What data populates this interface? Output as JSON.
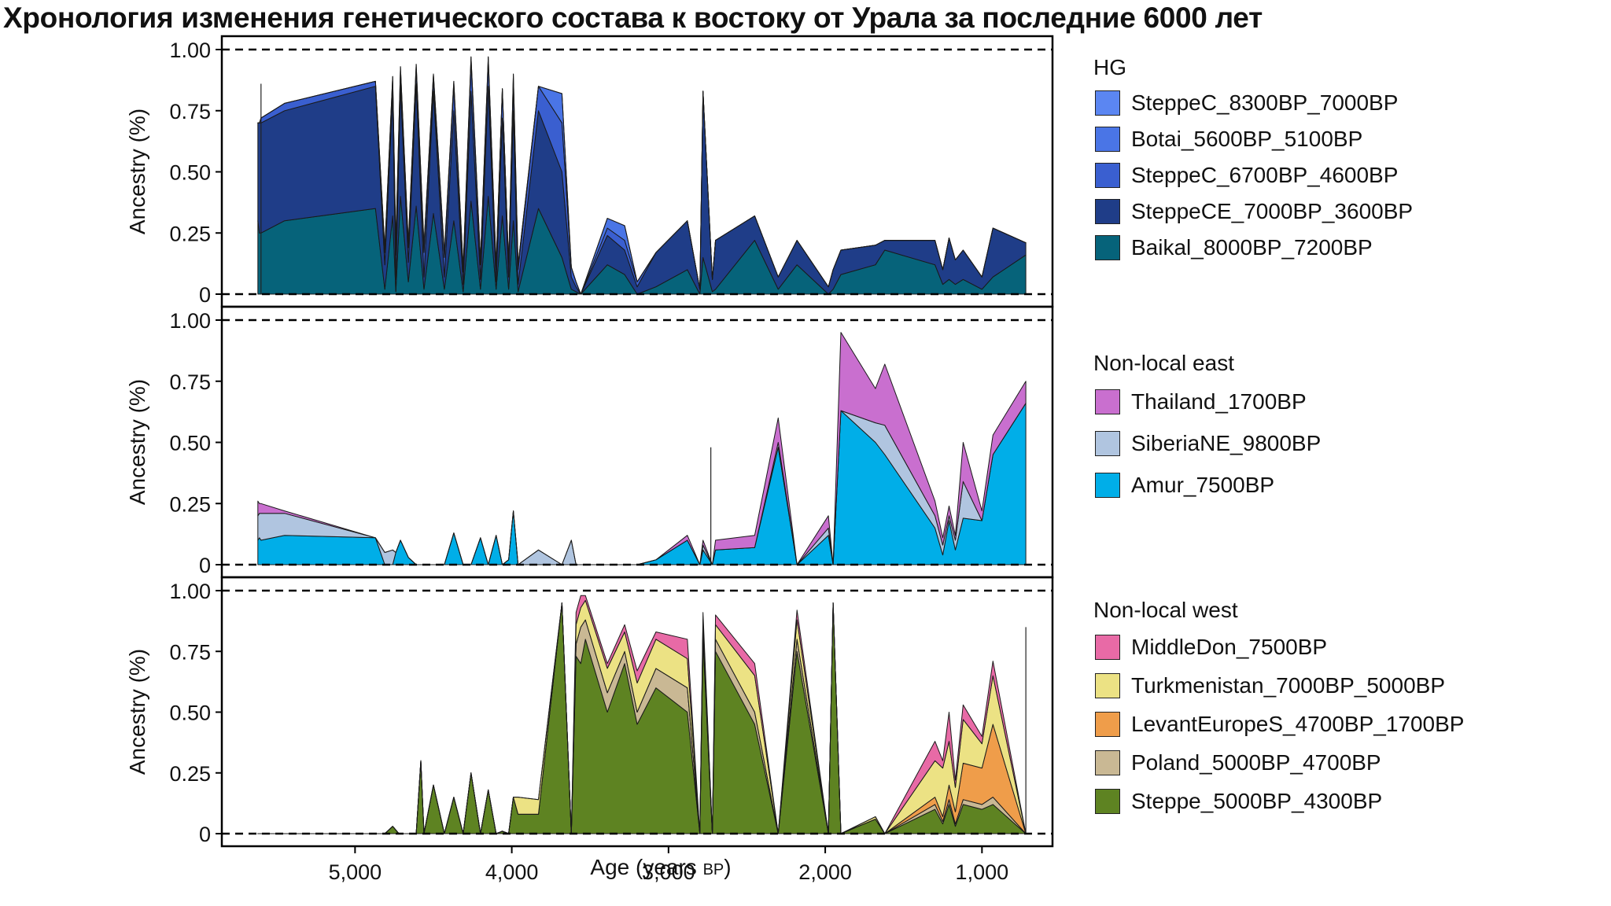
{
  "title": "Хронология изменения генетического состава к востоку от Урала за последние 6000 лет",
  "chart_data": {
    "type": "area",
    "stacked": true,
    "xlabel": "Age (years BP)",
    "xlabel_main": "Age (years ",
    "xlabel_unit": "BP",
    "xlabel_end": ")",
    "x_reversed": true,
    "xlim": [
      5850,
      550
    ],
    "xticks": [
      5000,
      4000,
      3000,
      2000,
      1000
    ],
    "xtick_labels": [
      "5,000",
      "4,000",
      "3,000",
      "2,000",
      "1,000"
    ],
    "ylim": [
      0,
      1
    ],
    "yticks": [
      0,
      0.25,
      0.5,
      0.75,
      1.0
    ],
    "ytick_labels": [
      "0",
      "0.25",
      "0.50",
      "0.75",
      "1.00"
    ],
    "ylabel": "Ancestry (%)",
    "reference_lines": [
      0,
      1
    ],
    "panels": [
      {
        "legend_title": "HG",
        "x": [
          5620,
          5610,
          5600,
          5450,
          4870,
          4810,
          4760,
          4740,
          4710,
          4660,
          4610,
          4560,
          4500,
          4430,
          4370,
          4310,
          4260,
          4200,
          4150,
          4100,
          4060,
          4020,
          3990,
          3960,
          3830,
          3680,
          3620,
          3590,
          3560,
          3390,
          3280,
          3200,
          3080,
          2880,
          2800,
          2780,
          2720,
          2700,
          2450,
          2300,
          2180,
          1980,
          1950,
          1900,
          1680,
          1620,
          1300,
          1250,
          1210,
          1170,
          1120,
          1000,
          930,
          720
        ],
        "series": [
          {
            "name": "Baikal_8000BP_7200BP",
            "color": "#06637a",
            "values": [
              0.3,
              0.25,
              0.25,
              0.3,
              0.35,
              0.02,
              0.32,
              0.01,
              0.4,
              0.05,
              0.36,
              0.02,
              0.33,
              0.02,
              0.3,
              0.01,
              0.38,
              0.02,
              0.4,
              0.02,
              0.32,
              0.02,
              0.3,
              0.01,
              0.35,
              0.15,
              0.02,
              0.01,
              0.0,
              0.12,
              0.08,
              0.0,
              0.03,
              0.1,
              0.0,
              0.15,
              0.01,
              0.02,
              0.22,
              0.02,
              0.12,
              0.0,
              0.02,
              0.08,
              0.12,
              0.18,
              0.12,
              0.04,
              0.06,
              0.04,
              0.06,
              0.02,
              0.07,
              0.16
            ]
          },
          {
            "name": "SteppeCE_7000BP_3600BP",
            "color": "#1f3d88",
            "values": [
              0.4,
              0.45,
              0.45,
              0.45,
              0.5,
              0.1,
              0.5,
              0.05,
              0.45,
              0.08,
              0.5,
              0.05,
              0.5,
              0.05,
              0.45,
              0.03,
              0.45,
              0.04,
              0.45,
              0.03,
              0.4,
              0.05,
              0.45,
              0.03,
              0.4,
              0.35,
              0.05,
              0.02,
              0.0,
              0.12,
              0.1,
              0.03,
              0.14,
              0.2,
              0.02,
              0.68,
              0.05,
              0.2,
              0.1,
              0.05,
              0.1,
              0.03,
              0.08,
              0.1,
              0.08,
              0.04,
              0.1,
              0.06,
              0.17,
              0.1,
              0.12,
              0.05,
              0.2,
              0.05
            ]
          },
          {
            "name": "SteppeC_6700BP_4600BP",
            "color": "#3a5fd0",
            "values": [
              0.0,
              0.0,
              0.02,
              0.03,
              0.02,
              0.05,
              0.05,
              0.1,
              0.04,
              0.06,
              0.06,
              0.1,
              0.05,
              0.08,
              0.1,
              0.05,
              0.12,
              0.06,
              0.1,
              0.05,
              0.12,
              0.05,
              0.1,
              0.06,
              0.1,
              0.2,
              0.04,
              0.02,
              0.0,
              0.03,
              0.04,
              0.02,
              0.0,
              0.0,
              0.0,
              0.0,
              0.0,
              0.0,
              0.0,
              0.0,
              0.0,
              0.0,
              0.0,
              0.0,
              0.0,
              0.0,
              0.0,
              0.0,
              0.0,
              0.0,
              0.0,
              0.0,
              0.0,
              0.0
            ]
          },
          {
            "name": "Botai_5600BP_5100BP",
            "color": "#4a75e6",
            "values": [
              0.0,
              0.0,
              0.0,
              0.0,
              0.0,
              0.02,
              0.02,
              0.05,
              0.04,
              0.02,
              0.02,
              0.03,
              0.02,
              0.02,
              0.02,
              0.02,
              0.02,
              0.02,
              0.02,
              0.02,
              0.0,
              0.0,
              0.05,
              0.02,
              0.0,
              0.12,
              0.0,
              0.0,
              0.0,
              0.04,
              0.06,
              0.0,
              0.0,
              0.0,
              0.0,
              0.0,
              0.0,
              0.0,
              0.0,
              0.0,
              0.0,
              0.0,
              0.0,
              0.0,
              0.0,
              0.0,
              0.0,
              0.0,
              0.0,
              0.0,
              0.0,
              0.0,
              0.0,
              0.0
            ]
          },
          {
            "name": "SteppeC_8300BP_7000BP",
            "color": "#5b86f2",
            "values": [
              0.0,
              0.0,
              0.0,
              0.0,
              0.0,
              0.0,
              0.0,
              0.0,
              0.0,
              0.0,
              0.0,
              0.0,
              0.0,
              0.0,
              0.0,
              0.0,
              0.0,
              0.0,
              0.0,
              0.0,
              0.0,
              0.0,
              0.0,
              0.0,
              0.0,
              0.0,
              0.0,
              0.0,
              0.0,
              0.0,
              0.0,
              0.0,
              0.0,
              0.0,
              0.0,
              0.0,
              0.0,
              0.0,
              0.0,
              0.0,
              0.0,
              0.0,
              0.0,
              0.0,
              0.0,
              0.0,
              0.0,
              0.0,
              0.0,
              0.0,
              0.0,
              0.0,
              0.0,
              0.0
            ]
          }
        ]
      },
      {
        "legend_title": "Non-local east",
        "x": [
          5620,
          5610,
          5600,
          5450,
          4870,
          4810,
          4760,
          4740,
          4710,
          4660,
          4610,
          4560,
          4500,
          4430,
          4370,
          4310,
          4260,
          4200,
          4150,
          4100,
          4060,
          4020,
          3990,
          3960,
          3830,
          3680,
          3620,
          3590,
          3560,
          3390,
          3280,
          3200,
          3080,
          2880,
          2800,
          2780,
          2720,
          2700,
          2450,
          2300,
          2180,
          1980,
          1950,
          1900,
          1680,
          1620,
          1300,
          1250,
          1210,
          1170,
          1120,
          1000,
          930,
          720
        ],
        "series": [
          {
            "name": "Amur_7500BP",
            "color": "#00aee8",
            "values": [
              0.1,
              0.11,
              0.1,
              0.12,
              0.11,
              0.0,
              0.0,
              0.05,
              0.1,
              0.03,
              0.0,
              0.0,
              0.0,
              0.0,
              0.13,
              0.0,
              0.0,
              0.11,
              0.0,
              0.12,
              0.0,
              0.02,
              0.22,
              0.0,
              0.0,
              0.0,
              0.0,
              0.0,
              0.0,
              0.0,
              0.0,
              0.0,
              0.02,
              0.1,
              0.0,
              0.06,
              0.0,
              0.06,
              0.07,
              0.48,
              0.0,
              0.12,
              0.0,
              0.63,
              0.5,
              0.45,
              0.15,
              0.04,
              0.18,
              0.06,
              0.19,
              0.18,
              0.45,
              0.66
            ]
          },
          {
            "name": "SiberiaNE_9800BP",
            "color": "#b0c5e0",
            "values": [
              0.1,
              0.1,
              0.11,
              0.09,
              0.0,
              0.05,
              0.06,
              0.0,
              0.0,
              0.0,
              0.0,
              0.0,
              0.0,
              0.0,
              0.0,
              0.0,
              0.0,
              0.0,
              0.0,
              0.0,
              0.0,
              0.0,
              0.0,
              0.0,
              0.06,
              0.0,
              0.1,
              0.0,
              0.0,
              0.0,
              0.0,
              0.0,
              0.0,
              0.0,
              0.0,
              0.02,
              0.0,
              0.0,
              0.0,
              0.02,
              0.0,
              0.03,
              0.0,
              0.0,
              0.08,
              0.12,
              0.05,
              0.04,
              0.02,
              0.04,
              0.15,
              0.0,
              0.0,
              0.0
            ]
          },
          {
            "name": "Thailand_1700BP",
            "color": "#c96fcf",
            "values": [
              0.06,
              0.04,
              0.04,
              0.01,
              0.0,
              0.0,
              0.0,
              0.0,
              0.0,
              0.0,
              0.0,
              0.0,
              0.0,
              0.0,
              0.0,
              0.0,
              0.0,
              0.0,
              0.0,
              0.0,
              0.0,
              0.0,
              0.0,
              0.0,
              0.0,
              0.0,
              0.0,
              0.0,
              0.0,
              0.0,
              0.0,
              0.0,
              0.0,
              0.02,
              0.0,
              0.02,
              0.0,
              0.04,
              0.05,
              0.1,
              0.0,
              0.05,
              0.0,
              0.32,
              0.14,
              0.25,
              0.06,
              0.03,
              0.04,
              0.02,
              0.16,
              0.04,
              0.08,
              0.09
            ]
          }
        ]
      },
      {
        "legend_title": "Non-local west",
        "x": [
          5620,
          4810,
          4760,
          4720,
          4610,
          4580,
          4560,
          4500,
          4430,
          4370,
          4310,
          4260,
          4200,
          4150,
          4100,
          4060,
          4020,
          3990,
          3960,
          3830,
          3680,
          3620,
          3590,
          3560,
          3530,
          3390,
          3280,
          3200,
          3080,
          2880,
          2800,
          2780,
          2720,
          2700,
          2450,
          2300,
          2180,
          1980,
          1950,
          1900,
          1680,
          1620,
          1300,
          1250,
          1210,
          1170,
          1120,
          1000,
          930,
          720
        ],
        "series": [
          {
            "name": "Steppe_5000BP_4300BP",
            "color": "#5e8322",
            "values": [
              0.0,
              0.0,
              0.03,
              0.0,
              0.0,
              0.3,
              0.0,
              0.2,
              0.0,
              0.15,
              0.0,
              0.25,
              0.0,
              0.18,
              0.0,
              0.01,
              0.0,
              0.15,
              0.08,
              0.08,
              0.95,
              0.0,
              0.73,
              0.7,
              0.8,
              0.5,
              0.7,
              0.45,
              0.6,
              0.5,
              0.0,
              0.8,
              0.0,
              0.75,
              0.45,
              0.0,
              0.75,
              0.0,
              0.95,
              0.0,
              0.06,
              0.0,
              0.1,
              0.04,
              0.12,
              0.03,
              0.12,
              0.1,
              0.12,
              0.0
            ]
          },
          {
            "name": "Poland_5000BP_4700BP",
            "color": "#c9b894",
            "values": [
              0.0,
              0.0,
              0.0,
              0.0,
              0.0,
              0.0,
              0.0,
              0.0,
              0.0,
              0.0,
              0.0,
              0.0,
              0.0,
              0.0,
              0.0,
              0.0,
              0.0,
              0.0,
              0.0,
              0.0,
              0.0,
              0.0,
              0.05,
              0.15,
              0.08,
              0.08,
              0.05,
              0.05,
              0.08,
              0.1,
              0.0,
              0.05,
              0.0,
              0.05,
              0.05,
              0.0,
              0.05,
              0.0,
              0.0,
              0.0,
              0.0,
              0.0,
              0.02,
              0.01,
              0.02,
              0.01,
              0.02,
              0.02,
              0.03,
              0.0
            ]
          },
          {
            "name": "LevantEuropeS_4700BP_1700BP",
            "color": "#ef9d4a",
            "values": [
              0.0,
              0.0,
              0.0,
              0.0,
              0.0,
              0.0,
              0.0,
              0.0,
              0.0,
              0.0,
              0.0,
              0.0,
              0.0,
              0.0,
              0.0,
              0.0,
              0.0,
              0.0,
              0.0,
              0.0,
              0.0,
              0.0,
              0.0,
              0.0,
              0.0,
              0.0,
              0.0,
              0.0,
              0.0,
              0.0,
              0.0,
              0.0,
              0.0,
              0.0,
              0.0,
              0.0,
              0.0,
              0.0,
              0.0,
              0.0,
              0.0,
              0.0,
              0.03,
              0.02,
              0.06,
              0.05,
              0.15,
              0.15,
              0.3,
              0.0
            ]
          },
          {
            "name": "Turkmenistan_7000BP_5000BP",
            "color": "#ece284",
            "values": [
              0.0,
              0.0,
              0.0,
              0.0,
              0.0,
              0.0,
              0.0,
              0.0,
              0.0,
              0.0,
              0.0,
              0.0,
              0.0,
              0.0,
              0.0,
              0.0,
              0.0,
              0.0,
              0.07,
              0.06,
              0.0,
              0.0,
              0.08,
              0.08,
              0.08,
              0.1,
              0.08,
              0.12,
              0.12,
              0.12,
              0.0,
              0.03,
              0.0,
              0.06,
              0.15,
              0.0,
              0.08,
              0.0,
              0.0,
              0.0,
              0.01,
              0.0,
              0.15,
              0.2,
              0.18,
              0.1,
              0.18,
              0.1,
              0.2,
              0.0
            ]
          },
          {
            "name": "MiddleDon_7500BP",
            "color": "#e86aa6",
            "values": [
              0.0,
              0.0,
              0.0,
              0.0,
              0.0,
              0.0,
              0.0,
              0.0,
              0.0,
              0.0,
              0.0,
              0.0,
              0.0,
              0.0,
              0.0,
              0.0,
              0.0,
              0.0,
              0.0,
              0.0,
              0.0,
              0.0,
              0.05,
              0.05,
              0.02,
              0.02,
              0.03,
              0.05,
              0.03,
              0.08,
              0.0,
              0.03,
              0.0,
              0.04,
              0.05,
              0.0,
              0.04,
              0.0,
              0.0,
              0.0,
              0.0,
              0.0,
              0.08,
              0.03,
              0.12,
              0.03,
              0.06,
              0.03,
              0.06,
              0.0
            ]
          }
        ]
      }
    ],
    "panel_markers": [
      {
        "panel": 0,
        "x": 5600,
        "value": 0.86
      },
      {
        "panel": 1,
        "x": 2730,
        "value": 0.48
      },
      {
        "panel": 2,
        "x": 720,
        "value": 0.85
      }
    ]
  }
}
